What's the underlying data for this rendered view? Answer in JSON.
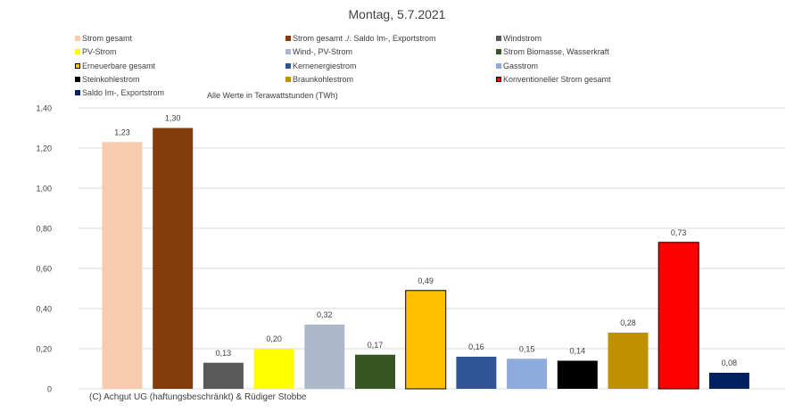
{
  "chart_data": {
    "type": "bar",
    "title": "Montag, 5.7.2021",
    "subtitle": "Alle Werte in Terawattstunden (TWh)",
    "ylim": [
      0,
      1.4
    ],
    "yticks": [
      "0",
      "0,20",
      "0,40",
      "0,60",
      "0,80",
      "1,00",
      "1,20",
      "1,40"
    ],
    "ytick_values": [
      0,
      0.2,
      0.4,
      0.6,
      0.8,
      1.0,
      1.2,
      1.4
    ],
    "grid": true,
    "legend_position": "top",
    "series": [
      {
        "name": "Strom gesamt",
        "value": 1.23,
        "label": "1,23",
        "color": "#f8cbad"
      },
      {
        "name": "Strom gesamt ./. Saldo Im-, Exportstrom",
        "value": 1.3,
        "label": "1,30",
        "color": "#843c0c"
      },
      {
        "name": "Windstrom",
        "value": 0.13,
        "label": "0,13",
        "color": "#595959"
      },
      {
        "name": "PV-Strom",
        "value": 0.2,
        "label": "0,20",
        "color": "#ffff00"
      },
      {
        "name": "Wind-, PV-Strom",
        "value": 0.32,
        "label": "0,32",
        "color": "#adb9ca"
      },
      {
        "name": "Strom Biomasse, Wasserkraft",
        "value": 0.17,
        "label": "0,17",
        "color": "#375623"
      },
      {
        "name": "Erneuerbare gesamt",
        "value": 0.49,
        "label": "0,49",
        "color": "#ffc000"
      },
      {
        "name": "Kernenergiestrom",
        "value": 0.16,
        "label": "0,16",
        "color": "#2f5597"
      },
      {
        "name": "Gasstrom",
        "value": 0.15,
        "label": "0,15",
        "color": "#8faadc"
      },
      {
        "name": "Steinkohlestrom",
        "value": 0.14,
        "label": "0,14",
        "color": "#000000"
      },
      {
        "name": "Braunkohlestrom",
        "value": 0.28,
        "label": "0,28",
        "color": "#bf9000"
      },
      {
        "name": "Konventioneller Strom gesamt",
        "value": 0.73,
        "label": "0,73",
        "color": "#ff0000"
      },
      {
        "name": "Saldo Im-, Exportstrom",
        "value": 0.08,
        "label": "0,08",
        "color": "#002060"
      }
    ]
  },
  "copyright": "(C) Achgut UG (haftungsbeschränkt) & Rüdiger Stobbe"
}
